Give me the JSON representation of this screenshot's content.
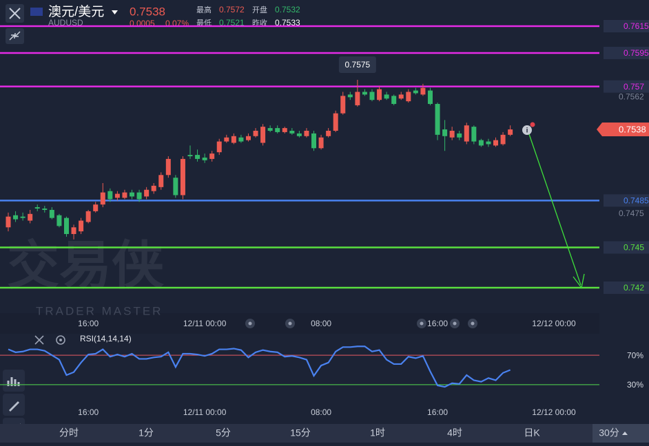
{
  "header": {
    "symbol": "澳元/美元",
    "code": "AUDUSD",
    "price": "0.7538",
    "change": "0.0005",
    "change_pct": "0.07%",
    "high_label": "最高",
    "high": "0.7572",
    "open_label": "开盘",
    "open": "0.7532",
    "low_label": "最低",
    "low": "0.7521",
    "prev_label": "昨收",
    "prev": "0.7533"
  },
  "watermark": {
    "title": "交易侠",
    "subtitle": "TRADER MASTER"
  },
  "chart_data": [
    {
      "type": "candlestick",
      "categories": [
        null,
        null,
        null,
        null,
        null,
        null,
        null,
        null,
        null,
        null,
        null,
        "16:00",
        null,
        null,
        null,
        null,
        null,
        null,
        null,
        null,
        null,
        null,
        null,
        null,
        null,
        null,
        null,
        "12/11 00:00",
        null,
        null,
        null,
        null,
        null,
        null,
        null,
        null,
        null,
        null,
        null,
        null,
        null,
        null,
        null,
        "08:00",
        null,
        null,
        null,
        null,
        null,
        null,
        null,
        null,
        null,
        null,
        null,
        null,
        null,
        null,
        null,
        "16:00",
        null,
        null,
        null,
        null,
        null,
        null,
        null,
        null,
        null,
        null,
        null,
        null,
        null,
        null,
        null,
        "12/12 00:00",
        null,
        null,
        null,
        null,
        null,
        null
      ],
      "open": [
        0.7465,
        0.7474,
        0.7473,
        0.747,
        0.748,
        0.7479,
        0.7478,
        0.7474,
        0.7472,
        0.746,
        0.7462,
        0.7469,
        0.7477,
        0.7482,
        0.7492,
        0.7487,
        0.7487,
        0.7491,
        0.7491,
        0.7488,
        0.7492,
        0.7495,
        0.7504,
        0.7502,
        0.7489,
        0.7519,
        0.7519,
        0.7517,
        0.7516,
        0.7521,
        0.7529,
        0.7528,
        0.7532,
        0.753,
        0.7533,
        0.7528,
        0.7539,
        0.7539,
        0.7536,
        0.7537,
        0.7535,
        0.7533,
        0.7535,
        0.7524,
        0.7533,
        0.7537,
        0.755,
        0.7564,
        0.7556,
        0.7566,
        0.7566,
        0.756,
        0.7564,
        0.7563,
        0.7561,
        0.7559,
        0.7567,
        0.7564,
        0.7567,
        0.7557,
        0.7538,
        0.7532,
        0.7535,
        0.7529,
        0.754,
        0.753,
        0.7529,
        0.7526,
        0.7527,
        0.7534,
        null,
        null,
        null,
        null,
        null,
        null,
        null,
        null,
        null,
        null,
        null,
        null
      ],
      "high": [
        0.7476,
        0.7477,
        0.7476,
        0.7478,
        0.7482,
        0.7481,
        0.748,
        0.7475,
        0.7473,
        0.7467,
        0.7472,
        0.7478,
        0.7484,
        0.7498,
        0.7494,
        0.7492,
        0.7493,
        0.7493,
        0.7493,
        0.7495,
        0.7498,
        0.7506,
        0.7518,
        0.7504,
        0.7518,
        0.7526,
        0.7523,
        0.752,
        0.7522,
        0.7531,
        0.7534,
        0.7535,
        0.7534,
        0.7535,
        0.7539,
        0.7542,
        0.7541,
        0.7541,
        0.754,
        0.7539,
        0.7537,
        0.7539,
        0.7537,
        0.7534,
        0.7539,
        0.7552,
        0.7566,
        0.7566,
        0.7575,
        0.7568,
        0.7568,
        0.757,
        0.7566,
        0.7564,
        0.7566,
        0.7568,
        0.7569,
        0.7572,
        0.7569,
        0.7558,
        0.7545,
        0.754,
        0.7537,
        0.7543,
        0.7541,
        0.7531,
        0.7531,
        0.7532,
        0.7536,
        0.7541,
        null,
        null,
        null,
        null,
        null,
        null,
        null,
        null,
        null,
        null,
        null,
        null
      ],
      "low": [
        0.7462,
        0.7469,
        0.747,
        0.7468,
        0.7477,
        0.7476,
        0.7471,
        0.7465,
        0.7458,
        0.7456,
        0.746,
        0.7468,
        0.7476,
        0.748,
        0.7484,
        0.7485,
        0.7486,
        0.7486,
        0.7484,
        0.7486,
        0.749,
        0.7493,
        0.7502,
        0.7487,
        0.7486,
        0.7516,
        0.7514,
        0.7513,
        0.7514,
        0.7519,
        0.7528,
        0.7527,
        0.7528,
        0.7529,
        0.7532,
        0.7526,
        0.7536,
        0.7535,
        0.7535,
        0.7534,
        0.7532,
        0.7532,
        0.7522,
        0.7523,
        0.7532,
        0.7536,
        0.7549,
        0.756,
        0.7555,
        0.7563,
        0.7559,
        0.7559,
        0.756,
        0.7556,
        0.756,
        0.7558,
        0.7564,
        0.7563,
        0.7556,
        0.753,
        0.7522,
        0.753,
        0.753,
        0.7527,
        0.7527,
        0.7525,
        0.7525,
        0.7525,
        0.7526,
        0.7533,
        null,
        null,
        null,
        null,
        null,
        null,
        null,
        null,
        null,
        null,
        null,
        null
      ],
      "close": [
        0.7473,
        0.7471,
        0.7472,
        0.7475,
        0.7479,
        0.7478,
        0.7472,
        0.7466,
        0.746,
        0.7465,
        0.747,
        0.7477,
        0.7482,
        0.7491,
        0.7486,
        0.749,
        0.7491,
        0.7488,
        0.7486,
        0.7493,
        0.7496,
        0.7504,
        0.7516,
        0.7489,
        0.7516,
        0.7518,
        0.7516,
        0.7515,
        0.752,
        0.7529,
        0.7532,
        0.7533,
        0.7529,
        0.7533,
        0.7537,
        0.754,
        0.7537,
        0.7536,
        0.7539,
        0.7535,
        0.7533,
        0.7537,
        0.7524,
        0.7532,
        0.7537,
        0.755,
        0.7563,
        0.7562,
        0.7566,
        0.7564,
        0.756,
        0.7568,
        0.7561,
        0.7557,
        0.7564,
        0.7566,
        0.7565,
        0.7569,
        0.7557,
        0.7534,
        0.7533,
        0.7537,
        0.7532,
        0.7541,
        0.7529,
        0.7526,
        0.7527,
        0.753,
        0.7534,
        0.7538,
        null,
        null,
        null,
        null,
        null,
        null,
        null,
        null,
        null,
        null,
        null,
        null
      ],
      "up_color": "#ec5b52",
      "down_color": "#33b86b",
      "ylim": [
        0.7401,
        0.76345
      ],
      "yticks": [
        0.7562,
        0.7475
      ],
      "lines": [
        {
          "value": 0.7615,
          "color": "#e52be6"
        },
        {
          "value": 0.7595,
          "color": "#e52be6"
        },
        {
          "value": 0.757,
          "color": "#e52be6"
        },
        {
          "value": 0.7485,
          "color": "#4a82f0"
        },
        {
          "value": 0.745,
          "color": "#5ae03f"
        },
        {
          "value": 0.742,
          "color": "#5ae03f"
        }
      ]
    },
    {
      "type": "line",
      "title": "RSI(14,14,14)",
      "categories": [
        null,
        null,
        null,
        null,
        null,
        null,
        null,
        null,
        null,
        null,
        null,
        "16:00",
        null,
        null,
        null,
        null,
        null,
        null,
        null,
        null,
        null,
        null,
        null,
        null,
        null,
        null,
        null,
        "12/11 00:00",
        null,
        null,
        null,
        null,
        null,
        null,
        null,
        null,
        null,
        null,
        null,
        null,
        null,
        null,
        null,
        "08:00",
        null,
        null,
        null,
        null,
        null,
        null,
        null,
        null,
        null,
        null,
        null,
        null,
        null,
        null,
        null,
        "16:00",
        null,
        null,
        null,
        null,
        null,
        null,
        null,
        null,
        null,
        null,
        null,
        null,
        null,
        null,
        null,
        "12/12 00:00",
        null,
        null,
        null,
        null,
        null,
        null
      ],
      "values": [
        78,
        74,
        75,
        78,
        78,
        76,
        70,
        64,
        43,
        47,
        60,
        71,
        72,
        78,
        68,
        71,
        68,
        72,
        65,
        65,
        67,
        68,
        74,
        54,
        72,
        72,
        71,
        69,
        72,
        78,
        78,
        79,
        77,
        67,
        74,
        77,
        75,
        74,
        68,
        69,
        67,
        64,
        42,
        56,
        60,
        75,
        81,
        81,
        82,
        82,
        75,
        77,
        64,
        58,
        58,
        68,
        66,
        69,
        48,
        29,
        27,
        32,
        31,
        43,
        36,
        34,
        39,
        36,
        46,
        50,
        null,
        null,
        null,
        null,
        null,
        null,
        null,
        null,
        null,
        null,
        null,
        null
      ],
      "color": "#4a82f0",
      "ylim": [
        0,
        100
      ],
      "yticks": [
        {
          "value": 70,
          "label": "70%",
          "color": "#c0505a"
        },
        {
          "value": 30,
          "label": "30%",
          "color": "#48b84a"
        }
      ]
    }
  ],
  "tabs": [
    "分时",
    "1分",
    "5分",
    "15分",
    "1时",
    "4时",
    "日K",
    "30分"
  ],
  "active_tab": 7
}
